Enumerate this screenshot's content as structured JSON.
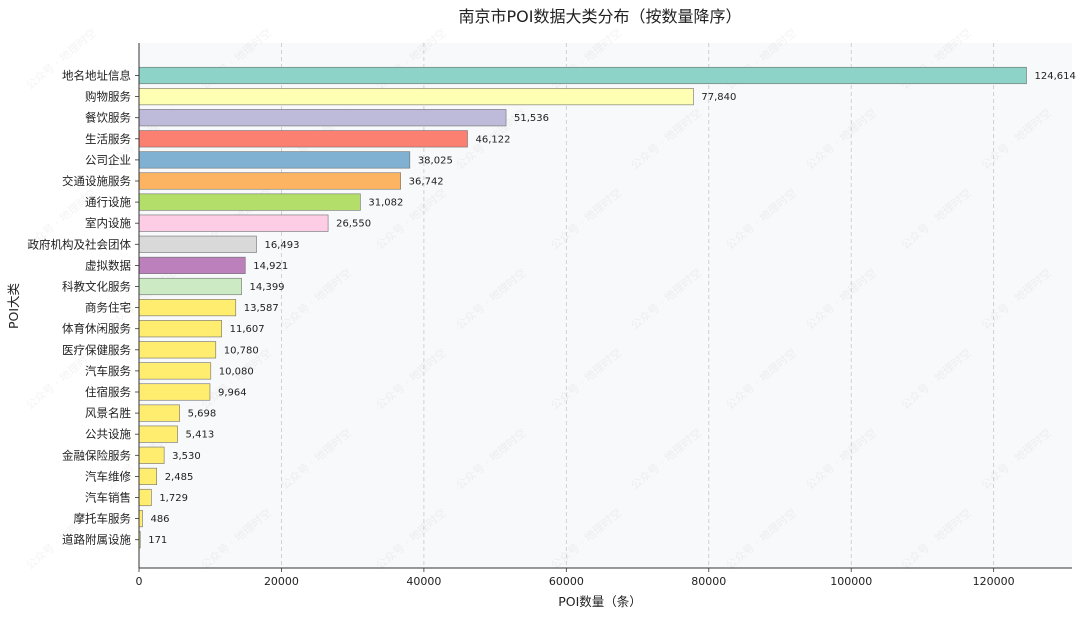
{
  "chart_data": {
    "type": "bar",
    "orientation": "horizontal",
    "title": "南京市POI数据大类分布（按数量降序）",
    "xlabel": "POI数量（条）",
    "ylabel": "POI大类",
    "xlim": [
      0,
      131000
    ],
    "xticks": [
      0,
      20000,
      40000,
      60000,
      80000,
      100000,
      120000
    ],
    "xtick_labels": [
      "0",
      "20000",
      "40000",
      "60000",
      "80000",
      "100000",
      "120000"
    ],
    "grid": true,
    "categories": [
      "地名地址信息",
      "购物服务",
      "餐饮服务",
      "生活服务",
      "公司企业",
      "交通设施服务",
      "通行设施",
      "室内设施",
      "政府机构及社会团体",
      "虚拟数据",
      "科教文化服务",
      "商务住宅",
      "体育休闲服务",
      "医疗保健服务",
      "汽车服务",
      "住宿服务",
      "风景名胜",
      "公共设施",
      "金融保险服务",
      "汽车维修",
      "汽车销售",
      "摩托车服务",
      "道路附属设施"
    ],
    "values": [
      124614,
      77840,
      51536,
      46122,
      38025,
      36742,
      31082,
      26550,
      16493,
      14921,
      14399,
      13587,
      11607,
      10780,
      10080,
      9964,
      5698,
      5413,
      3530,
      2485,
      1729,
      486,
      171
    ],
    "value_labels": [
      "124,614",
      "77,840",
      "51,536",
      "46,122",
      "38,025",
      "36,742",
      "31,082",
      "26,550",
      "16,493",
      "14,921",
      "14,399",
      "13,587",
      "11,607",
      "10,780",
      "10,080",
      "9,964",
      "5,698",
      "5,413",
      "3,530",
      "2,485",
      "1,729",
      "486",
      "171"
    ],
    "colors": [
      "#8dd3c7",
      "#ffffb3",
      "#bebada",
      "#fb8072",
      "#80b1d3",
      "#fdb462",
      "#b3de69",
      "#fccde5",
      "#d9d9d9",
      "#bc80bd",
      "#ccebc5",
      "#ffed6f",
      "#ffed6f",
      "#ffed6f",
      "#ffed6f",
      "#ffed6f",
      "#ffed6f",
      "#ffed6f",
      "#ffed6f",
      "#ffed6f",
      "#ffed6f",
      "#ffed6f",
      "#ffed6f"
    ],
    "watermark": "公众号 · 地理时空"
  }
}
